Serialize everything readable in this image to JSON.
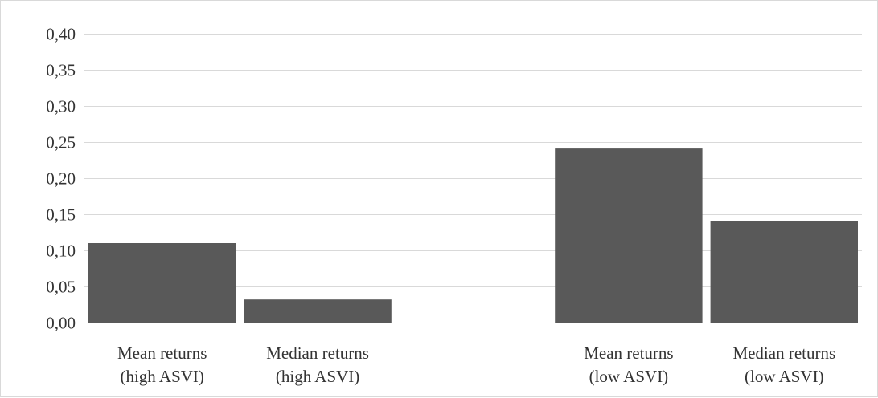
{
  "chart_data": {
    "type": "bar",
    "categories": [
      [
        "Mean returns",
        "(high ASVI)"
      ],
      [
        "Median returns",
        "(high ASVI)"
      ],
      [
        "",
        ""
      ],
      [
        "Mean returns",
        "(low ASVI)"
      ],
      [
        "Median returns",
        "(low ASVI)"
      ]
    ],
    "values": [
      0.11,
      0.032,
      null,
      0.241,
      0.14
    ],
    "ylim": [
      0,
      0.4
    ],
    "yticks": [
      "0,00",
      "0,05",
      "0,10",
      "0,15",
      "0,20",
      "0,25",
      "0,30",
      "0,35",
      "0,40"
    ],
    "ytick_values": [
      0,
      0.05,
      0.1,
      0.15,
      0.2,
      0.25,
      0.3,
      0.35,
      0.4
    ],
    "grid": true,
    "legend": "none",
    "colors": {
      "bar": "#595959",
      "grid": "#d9d9d9",
      "text": "#333333"
    }
  }
}
